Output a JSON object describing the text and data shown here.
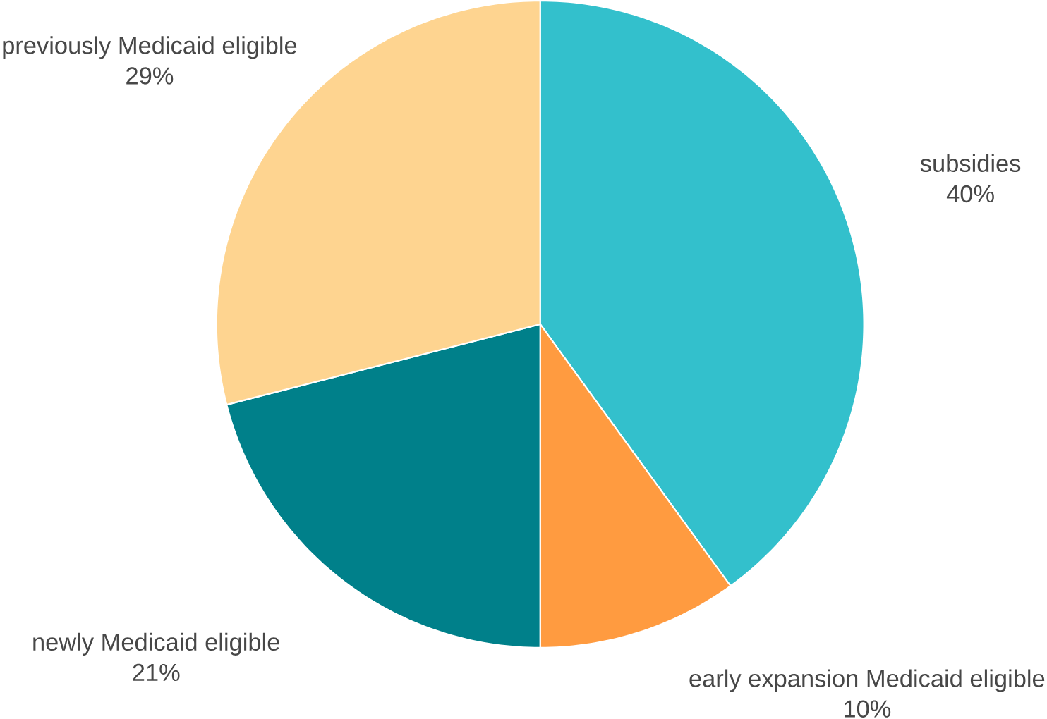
{
  "chart_data": {
    "type": "pie",
    "categories": [
      "subsidies",
      "early expansion Medicaid eligible",
      "newly Medicaid eligible",
      "previously Medicaid eligible"
    ],
    "values": [
      40,
      10,
      21,
      29
    ],
    "value_labels": [
      "40%",
      "10%",
      "21%",
      "29%"
    ],
    "colors": [
      "#33c0cc",
      "#ff9b40",
      "#00808a",
      "#fed490"
    ]
  }
}
